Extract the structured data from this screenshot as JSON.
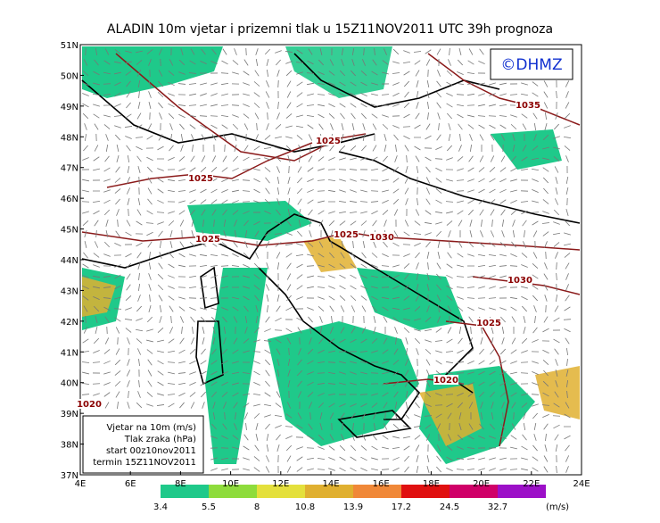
{
  "title": "ALADIN 10m vjetar i prizemni tlak u 15Z11NOV2011 UTC 39h prognoza",
  "logo": "©DHMZ",
  "lat_labels": [
    "51N",
    "50N",
    "49N",
    "48N",
    "47N",
    "46N",
    "45N",
    "44N",
    "43N",
    "42N",
    "41N",
    "40N",
    "39N",
    "38N",
    "37N"
  ],
  "lon_labels": [
    "4E",
    "6E",
    "8E",
    "10E",
    "12E",
    "14E",
    "16E",
    "18E",
    "20E",
    "22E",
    "24E"
  ],
  "isobar_labels": [
    "1035",
    "1025",
    "1025",
    "1025",
    "1025",
    "1030",
    "1030",
    "1025",
    "1020",
    "1020"
  ],
  "legend_lines": [
    "Vjetar na 10m (m/s)",
    "Tlak zraka (hPa)",
    "start 00z10nov2011",
    "termin 15Z11NOV2011"
  ],
  "colorbar": {
    "values": [
      3.4,
      5.5,
      8,
      10.8,
      13.9,
      17.2,
      24.5,
      32.7
    ],
    "colors": [
      "#1fc98a",
      "#8edc3c",
      "#e4e03c",
      "#e0b030",
      "#f08838",
      "#e01010",
      "#d00068",
      "#9c10c8"
    ],
    "unit": "(m/s)"
  }
}
